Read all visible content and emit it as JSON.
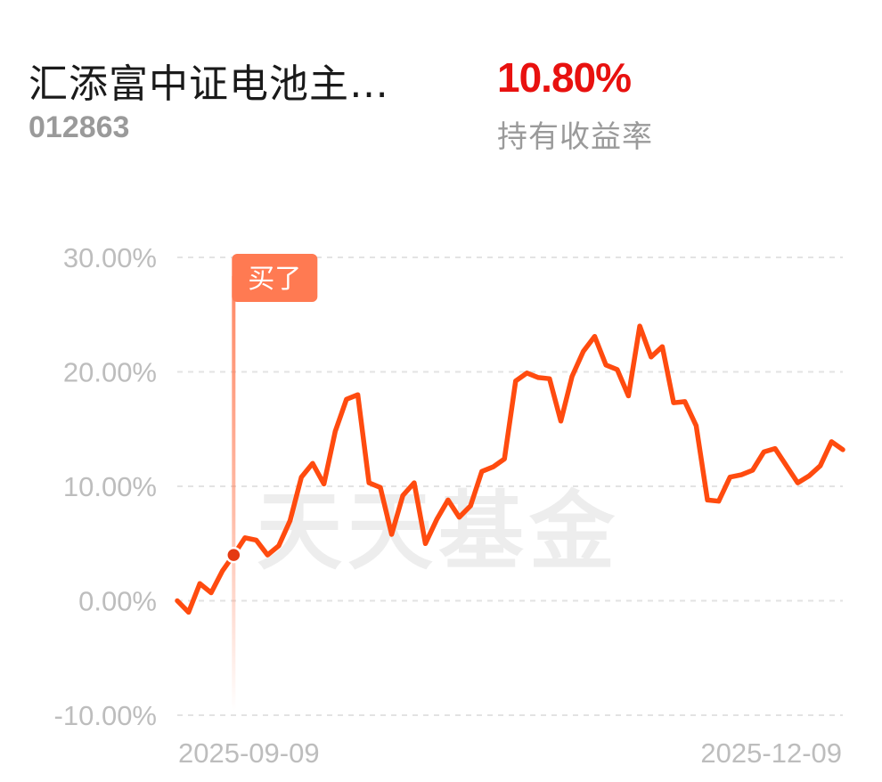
{
  "header": {
    "fund_name": "汇添富中证电池主…",
    "fund_code": "012863",
    "return_value": "10.80%",
    "return_label": "持有收益率"
  },
  "colors": {
    "line": "#ff4b0f",
    "buy_marker": "#ff7a52",
    "buy_dot": "#e53a12",
    "grid": "#e3e3e3",
    "axis_text": "#bdbdbd",
    "return_positive": "#e8110f"
  },
  "chart_data": {
    "type": "line",
    "title": "",
    "xlabel": "",
    "ylabel": "",
    "ylim": [
      -10,
      30
    ],
    "y_ticks": [
      30,
      20,
      10,
      0,
      -10
    ],
    "y_tick_labels": [
      "30.00%",
      "20.00%",
      "10.00%",
      "0.00%",
      "-10.00%"
    ],
    "x_tick_labels": [
      "2025-09-09",
      "2025-12-09"
    ],
    "grid": true,
    "watermark": "天天基金",
    "buy_marker": {
      "label": "买了",
      "index": 5,
      "value": 4.0
    },
    "series": [
      {
        "values": [
          0.0,
          -1.0,
          1.5,
          0.7,
          2.6,
          4.0,
          5.5,
          5.3,
          4.0,
          4.8,
          7.0,
          10.8,
          12.0,
          10.2,
          14.8,
          17.6,
          18.0,
          10.3,
          9.9,
          5.8,
          9.2,
          10.3,
          5.0,
          7.1,
          8.8,
          7.3,
          8.3,
          11.3,
          11.7,
          12.4,
          19.2,
          19.9,
          19.5,
          19.4,
          15.7,
          19.6,
          21.8,
          23.1,
          20.6,
          20.2,
          17.9,
          24.0,
          21.3,
          22.2,
          17.3,
          17.4,
          15.3,
          8.8,
          8.7,
          10.8,
          11.0,
          11.4,
          13.0,
          13.3,
          11.8,
          10.3,
          10.9,
          11.8,
          13.9,
          13.2
        ]
      }
    ]
  }
}
